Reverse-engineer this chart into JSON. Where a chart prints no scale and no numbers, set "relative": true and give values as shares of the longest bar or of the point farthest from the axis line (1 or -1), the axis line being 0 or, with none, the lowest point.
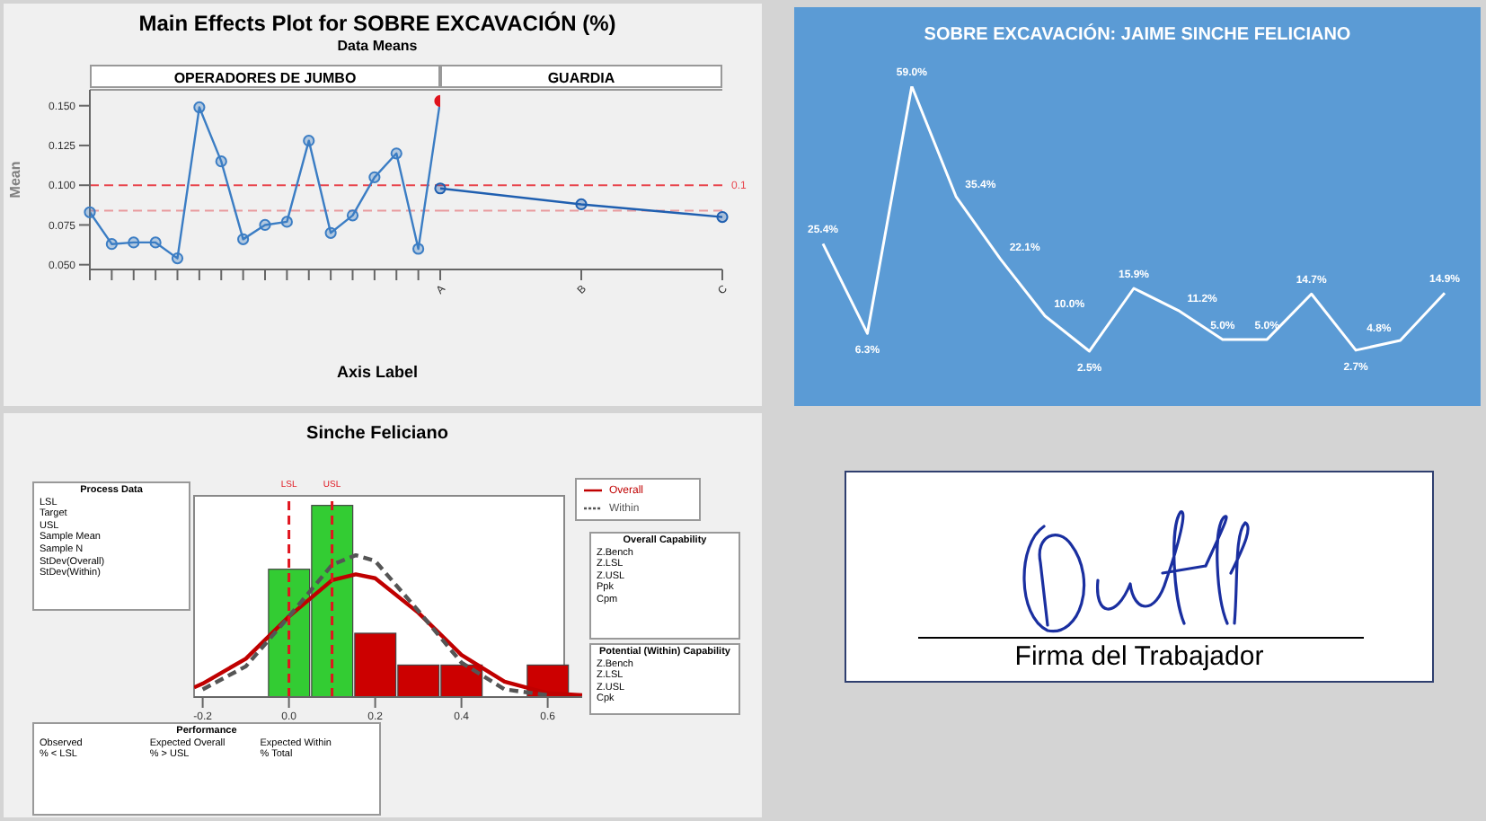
{
  "chart_data": [
    {
      "type": "line",
      "title": "Main Effects Plot for SOBRE EXCAVACIÓN (%)",
      "subtitle": "Data Means",
      "annotations": [
        "OPERADORES DE JUMBO"
      ],
      "xlabel": "Axis Label",
      "ylabel": "Mean",
      "categories": [
        null,
        null,
        null,
        null,
        null,
        null,
        null,
        null,
        null,
        null,
        null,
        null,
        null,
        null,
        null,
        null,
        null
      ],
      "series": [
        {
          "color": "#3b7dc4",
          "values": [
            0.083,
            0.063,
            0.064,
            0.064,
            0.054,
            0.149,
            0.115,
            0.066,
            0.075,
            0.077,
            0.128,
            0.07,
            0.081,
            0.105,
            0.12,
            0.06,
            0.153
          ],
          "colors": [
            "#3b7dc4",
            "#3b7dc4",
            "#3b7dc4",
            "#3b7dc4",
            "#3b7dc4",
            "#3b7dc4",
            "#3b7dc4",
            "#3b7dc4",
            "#3b7dc4",
            "#3b7dc4",
            "#3b7dc4",
            "#3b7dc4",
            "#3b7dc4",
            "#3b7dc4",
            "#3b7dc4",
            "#3b7dc4",
            "#e0141e"
          ]
        }
      ],
      "ylim": [
        0.047,
        0.16
      ],
      "yticks": [
        {
          "value": 0.05,
          "label": "0.050"
        },
        {
          "value": 0.075,
          "label": "0.075"
        },
        {
          "value": 0.1,
          "label": "0.100"
        },
        {
          "value": 0.125,
          "label": "0.125"
        },
        {
          "value": 0.15,
          "label": "0.150"
        }
      ],
      "ref_lines": [
        {
          "axis": "y",
          "value": 0.1,
          "color": "#e8444c",
          "line_style": "dashed"
        },
        {
          "axis": "y",
          "value": 0.084,
          "color": "#e89a9e",
          "line_style": "dashed"
        }
      ],
      "marker": "circle",
      "line_style": "solid"
    },
    {
      "type": "line",
      "title": "GUARDIA",
      "categories": [
        "A",
        "B",
        "C"
      ],
      "series": [
        {
          "color": "#1f5fb0",
          "values": [
            0.098,
            0.088,
            0.08
          ]
        }
      ],
      "ylim": [
        0.047,
        0.16
      ],
      "tick_labels": "x",
      "ref_lines": [
        {
          "axis": "y",
          "value": 0.1,
          "label": "0.1",
          "color": "#e8444c",
          "line_style": "dashed"
        },
        {
          "axis": "y",
          "value": 0.084,
          "color": "#e89a9e",
          "line_style": "dashed"
        }
      ],
      "marker": "circle",
      "line_style": "solid"
    },
    {
      "type": "line",
      "title": "SOBRE EXCAVACIÓN: JAIME SINCHE FELICIANO",
      "categories": [
        null,
        null,
        null,
        null,
        null,
        null,
        null,
        null,
        null,
        null,
        null,
        null,
        null,
        null,
        null
      ],
      "series": [
        {
          "color": "#ffffff",
          "values": [
            25.4,
            6.3,
            59.0,
            35.4,
            22.1,
            10.0,
            2.5,
            15.9,
            11.2,
            5.0,
            5.0,
            14.7,
            2.7,
            4.8,
            14.9
          ],
          "value_labels": [
            "25.4%",
            "6.3%",
            "59.0%",
            "35.4%",
            "22.1%",
            "10.0%",
            "2.5%",
            "15.9%",
            "11.2%",
            "5.0%",
            "5.0%",
            "14.7%",
            "2.7%",
            "4.8%",
            "14.9%"
          ]
        }
      ],
      "marker": "none",
      "line_style": "solid"
    },
    {
      "type": "histogram",
      "title": "Sinche Feliciano",
      "relative": true,
      "bins": [
        -0.05,
        0.05,
        0.15,
        0.25,
        0.35,
        0.45,
        0.55,
        0.65
      ],
      "values": [
        0.667,
        1,
        0.333,
        0.167,
        0.167,
        0,
        0.167
      ],
      "colors": [
        "#33cc33",
        "#33cc33",
        "#cc0000",
        "#cc0000",
        "#cc0000",
        "#cc0000",
        "#cc0000"
      ],
      "series": [
        {
          "type": "line",
          "name": "Overall",
          "color": "#c00000",
          "line_style": "solid",
          "x": [
            -0.22,
            -0.2,
            -0.1,
            0,
            0.1,
            0.155,
            0.2,
            0.3,
            0.4,
            0.5,
            0.6,
            0.68
          ],
          "values": [
            0.05,
            0.07,
            0.2,
            0.42,
            0.61,
            0.64,
            0.62,
            0.44,
            0.22,
            0.08,
            0.02,
            0.01
          ]
        },
        {
          "type": "line",
          "name": "Within",
          "color": "#555555",
          "line_style": "dashed",
          "x": [
            -0.2,
            -0.1,
            0,
            0.1,
            0.155,
            0.2,
            0.3,
            0.4,
            0.5,
            0.6
          ],
          "values": [
            0.04,
            0.16,
            0.42,
            0.69,
            0.74,
            0.71,
            0.45,
            0.18,
            0.04,
            0.01
          ]
        }
      ],
      "xlim": [
        -0.22,
        0.68
      ],
      "xticks": [
        {
          "value": -0.2,
          "label": "-0.2"
        },
        {
          "value": 0,
          "label": "0.0"
        },
        {
          "value": 0.2,
          "label": "0.2"
        },
        {
          "value": 0.4,
          "label": "0.4"
        },
        {
          "value": 0.6,
          "label": "0.6"
        }
      ],
      "ref_lines": [
        {
          "axis": "x",
          "value": 0,
          "label": "LSL",
          "color": "#e0141e",
          "line_style": "dashed"
        },
        {
          "axis": "x",
          "value": 0.1,
          "label": "USL",
          "color": "#e0141e",
          "line_style": "dashed"
        }
      ],
      "legend": "top right"
    },
    {
      "type": "other",
      "title": "Process Data",
      "annotations": [
        "LSL",
        "Target",
        "USL",
        "Sample Mean",
        "Sample N",
        "StDev(Overall)",
        "StDev(Within)"
      ]
    },
    {
      "type": "other",
      "title": "Overall Capability",
      "annotations": [
        "Z.Bench",
        "Z.LSL",
        "Z.USL",
        "Ppk",
        "Cpm"
      ]
    },
    {
      "type": "other",
      "title": "Potential (Within) Capability",
      "annotations": [
        "Z.Bench",
        "Z.LSL",
        "Z.USL",
        "Cpk"
      ]
    },
    {
      "type": "other",
      "title": "Performance",
      "annotations": [
        "Observed",
        "Expected Overall",
        "Expected Within",
        "% < LSL",
        "% > USL",
        "% Total"
      ]
    },
    {
      "type": "other",
      "annotations": [
        "Firma del Trabajador"
      ]
    }
  ]
}
